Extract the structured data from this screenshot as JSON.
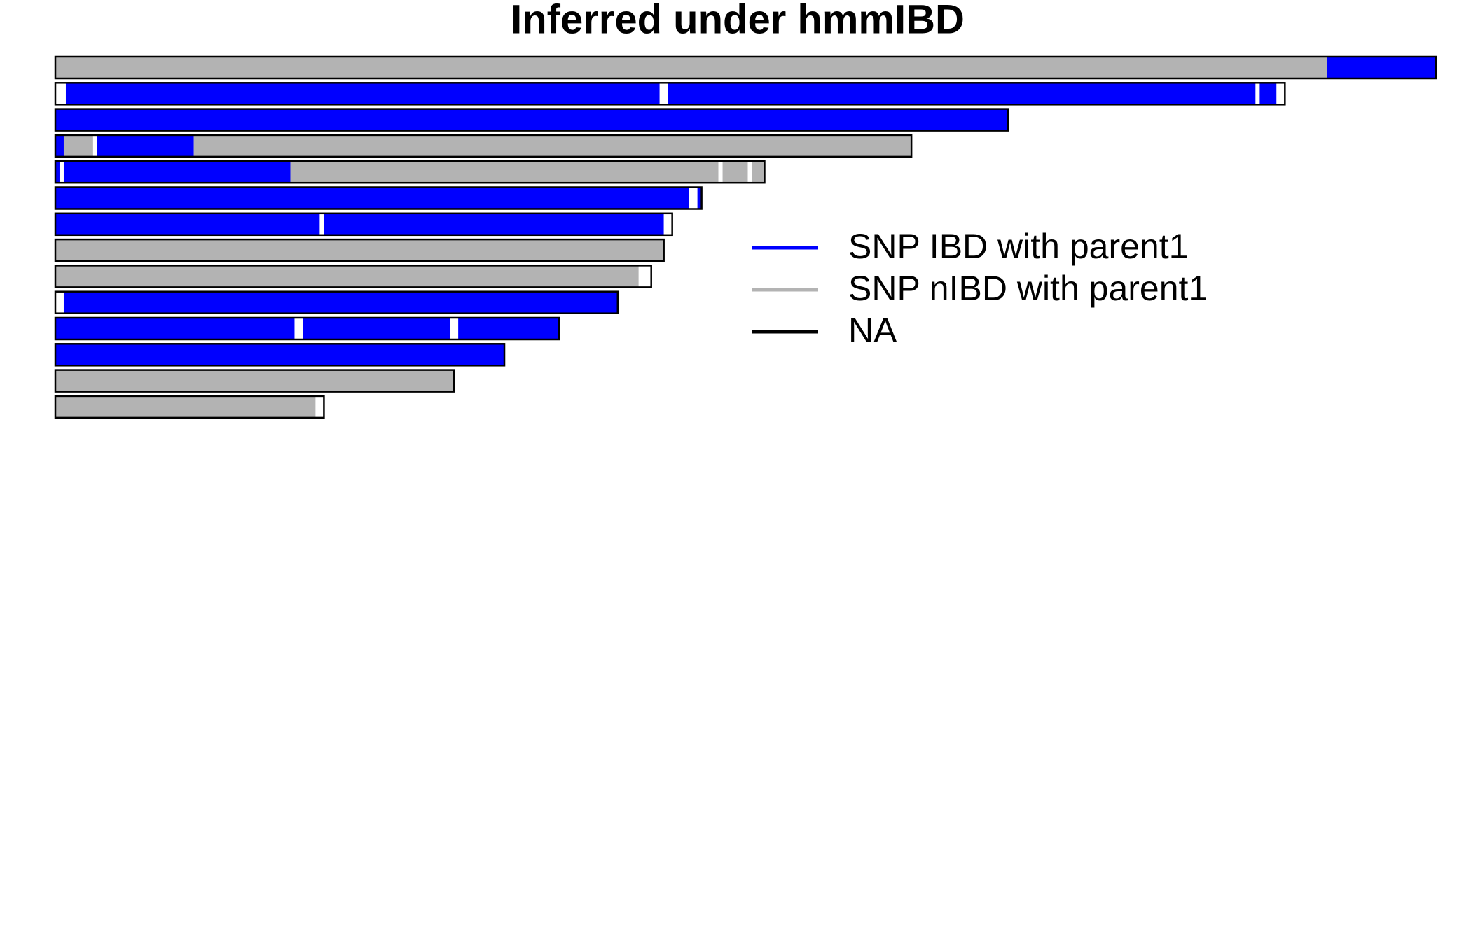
{
  "chart_data": {
    "type": "chromosome-painting",
    "title": "Inferred under hmmIBD",
    "xlim": [
      0,
      3.29
    ],
    "series": [
      {
        "name": "SNP IBD with parent1",
        "color": "#0000ff"
      },
      {
        "name": "SNP nIBD with parent1",
        "color": "#b3b3b3"
      },
      {
        "name": "NA",
        "color": "#000000"
      }
    ],
    "na_fill": "#ffffff",
    "chromosomes": [
      {
        "length": 3.29,
        "segments": [
          {
            "start": 0,
            "end": 3.03,
            "state": 1
          },
          {
            "start": 3.03,
            "end": 3.29,
            "state": 0
          }
        ]
      },
      {
        "length": 2.93,
        "segments": [
          {
            "start": 0,
            "end": 0.025,
            "state": 2
          },
          {
            "start": 0.025,
            "end": 1.44,
            "state": 0
          },
          {
            "start": 1.44,
            "end": 1.46,
            "state": 2
          },
          {
            "start": 1.46,
            "end": 2.86,
            "state": 0
          },
          {
            "start": 2.86,
            "end": 2.87,
            "state": 2
          },
          {
            "start": 2.87,
            "end": 2.91,
            "state": 0
          },
          {
            "start": 2.91,
            "end": 2.93,
            "state": 2
          }
        ]
      },
      {
        "length": 2.27,
        "segments": [
          {
            "start": 0,
            "end": 2.27,
            "state": 0
          }
        ]
      },
      {
        "length": 2.04,
        "segments": [
          {
            "start": 0,
            "end": 0.02,
            "state": 0
          },
          {
            "start": 0.02,
            "end": 0.09,
            "state": 1
          },
          {
            "start": 0.09,
            "end": 0.1,
            "state": 2
          },
          {
            "start": 0.1,
            "end": 0.33,
            "state": 0
          },
          {
            "start": 0.33,
            "end": 2.04,
            "state": 1
          }
        ]
      },
      {
        "length": 1.69,
        "segments": [
          {
            "start": 0,
            "end": 0.01,
            "state": 0
          },
          {
            "start": 0.01,
            "end": 0.02,
            "state": 2
          },
          {
            "start": 0.02,
            "end": 0.56,
            "state": 0
          },
          {
            "start": 0.56,
            "end": 1.58,
            "state": 1
          },
          {
            "start": 1.58,
            "end": 1.59,
            "state": 2
          },
          {
            "start": 1.59,
            "end": 1.65,
            "state": 1
          },
          {
            "start": 1.65,
            "end": 1.66,
            "state": 2
          },
          {
            "start": 1.66,
            "end": 1.69,
            "state": 1
          }
        ]
      },
      {
        "length": 1.54,
        "segments": [
          {
            "start": 0,
            "end": 1.51,
            "state": 0
          },
          {
            "start": 1.51,
            "end": 1.53,
            "state": 2
          },
          {
            "start": 1.53,
            "end": 1.54,
            "state": 0
          }
        ]
      },
      {
        "length": 1.47,
        "segments": [
          {
            "start": 0,
            "end": 0.63,
            "state": 0
          },
          {
            "start": 0.63,
            "end": 0.64,
            "state": 2
          },
          {
            "start": 0.64,
            "end": 1.45,
            "state": 0
          },
          {
            "start": 1.45,
            "end": 1.47,
            "state": 2
          }
        ]
      },
      {
        "length": 1.45,
        "segments": [
          {
            "start": 0,
            "end": 1.45,
            "state": 1
          }
        ]
      },
      {
        "length": 1.42,
        "segments": [
          {
            "start": 0,
            "end": 1.39,
            "state": 1
          },
          {
            "start": 1.39,
            "end": 1.42,
            "state": 2
          }
        ]
      },
      {
        "length": 1.34,
        "segments": [
          {
            "start": 0,
            "end": 0.02,
            "state": 2
          },
          {
            "start": 0.02,
            "end": 1.34,
            "state": 0
          }
        ]
      },
      {
        "length": 1.2,
        "segments": [
          {
            "start": 0,
            "end": 0.57,
            "state": 0
          },
          {
            "start": 0.57,
            "end": 0.59,
            "state": 2
          },
          {
            "start": 0.59,
            "end": 0.94,
            "state": 0
          },
          {
            "start": 0.94,
            "end": 0.96,
            "state": 2
          },
          {
            "start": 0.96,
            "end": 1.2,
            "state": 0
          }
        ]
      },
      {
        "length": 1.07,
        "segments": [
          {
            "start": 0,
            "end": 1.07,
            "state": 0
          }
        ]
      },
      {
        "length": 0.95,
        "segments": [
          {
            "start": 0,
            "end": 0.95,
            "state": 1
          }
        ]
      },
      {
        "length": 0.64,
        "segments": [
          {
            "start": 0,
            "end": 0.62,
            "state": 1
          },
          {
            "start": 0.62,
            "end": 0.64,
            "state": 2
          }
        ]
      }
    ]
  }
}
